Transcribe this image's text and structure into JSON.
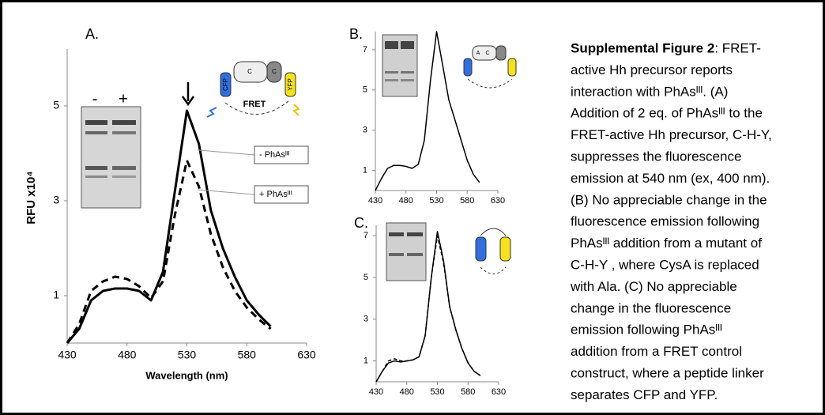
{
  "chart_data": [
    {
      "type": "line",
      "title": "A.",
      "x_label": "Wavelength (nm)",
      "y_label": "RFU x10⁴",
      "x": [
        430,
        440,
        450,
        460,
        470,
        480,
        490,
        500,
        510,
        520,
        530,
        540,
        550,
        560,
        570,
        580,
        590,
        600
      ],
      "xlim": [
        430,
        630
      ],
      "xticks": [
        430,
        480,
        530,
        580,
        630
      ],
      "ylim": [
        0,
        6.2
      ],
      "yticks": [
        1,
        3,
        5
      ],
      "series": [
        {
          "name": "- PhAsᴵᴵᴵ",
          "color": "#000000",
          "dash": false,
          "values": [
            0,
            0.3,
            0.9,
            1.1,
            1.15,
            1.15,
            1.1,
            0.9,
            1.5,
            3.2,
            4.9,
            4.2,
            2.8,
            2.0,
            1.4,
            0.9,
            0.6,
            0.35
          ]
        },
        {
          "name": "+ PhAsᴵᴵᴵ",
          "color": "#000000",
          "dash": true,
          "values": [
            0,
            0.4,
            1.1,
            1.3,
            1.4,
            1.35,
            1.2,
            0.95,
            1.3,
            2.7,
            3.85,
            3.3,
            2.3,
            1.6,
            1.1,
            0.75,
            0.5,
            0.3
          ]
        }
      ],
      "annotations": [
        "-",
        "+",
        "CFP",
        "YFP",
        "FRET",
        "C",
        "C"
      ]
    },
    {
      "type": "line",
      "title": "B.",
      "x": [
        430,
        440,
        450,
        460,
        470,
        480,
        490,
        500,
        510,
        520,
        530,
        540,
        550,
        560,
        570,
        580,
        590,
        600
      ],
      "xlim": [
        430,
        630
      ],
      "xticks": [
        430,
        480,
        530,
        580,
        630
      ],
      "ylim": [
        0,
        7.9
      ],
      "yticks": [
        1,
        3,
        5,
        7
      ],
      "series": [
        {
          "color": "#000000",
          "dash": false,
          "values": [
            0,
            0.6,
            1.1,
            1.25,
            1.25,
            1.2,
            1.1,
            1.3,
            2.5,
            5.5,
            7.9,
            6.2,
            4.5,
            3.5,
            2.5,
            1.5,
            0.8,
            0.4
          ]
        }
      ],
      "annotations": [
        "A",
        "C"
      ]
    },
    {
      "type": "line",
      "title": "C.",
      "x": [
        430,
        440,
        450,
        460,
        470,
        480,
        490,
        500,
        510,
        520,
        530,
        540,
        550,
        560,
        570,
        580,
        590,
        600
      ],
      "xlim": [
        430,
        630
      ],
      "xticks": [
        430,
        480,
        530,
        580,
        630
      ],
      "ylim": [
        0,
        7.5
      ],
      "yticks": [
        1,
        3,
        5,
        7
      ],
      "series": [
        {
          "color": "#000000",
          "dash": false,
          "values": [
            0,
            0.5,
            0.9,
            1.0,
            0.95,
            1.0,
            1.05,
            1.2,
            2.2,
            5.0,
            7.2,
            5.8,
            3.6,
            2.5,
            1.6,
            0.9,
            0.5,
            0.3
          ]
        },
        {
          "color": "#000000",
          "dash": true,
          "values": [
            0,
            0.5,
            1.0,
            1.1,
            1.0,
            1.0,
            1.05,
            1.2,
            2.2,
            5.0,
            7.0,
            5.7,
            3.6,
            2.5,
            1.6,
            0.9,
            0.5,
            0.3
          ]
        }
      ],
      "annotations": []
    }
  ],
  "caption": {
    "heading": "Supplemental Figure 2",
    "lines": [
      ": FRET-",
      "active Hh precursor reports",
      "interaction with PhAsᴵᴵᴵ.  (A)",
      "Addition of 2 eq. of PhAsᴵᴵᴵ to the",
      "FRET-active Hh precursor, C-H-Y,",
      "suppresses the  fluorescence",
      "emission at 540 nm (ex, 400 nm).",
      "(B) No appreciable change in the",
      "fluorescence emission following",
      "PhAsᴵᴵᴵ addition from a  mutant of",
      "C-H-Y , where CysA is replaced",
      "with Ala.  (C) No appreciable",
      "change in the fluorescence",
      "emission following PhAsᴵᴵᴵ",
      "addition from a FRET control",
      "construct, where a peptide linker",
      "separates CFP and YFP."
    ]
  }
}
